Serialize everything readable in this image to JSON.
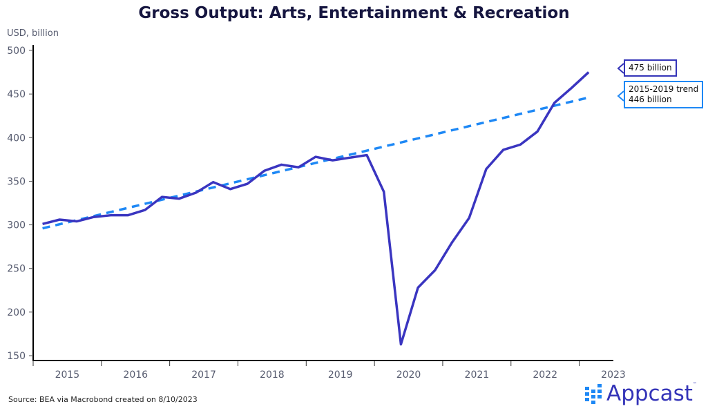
{
  "chart_data": {
    "type": "line",
    "title": "Gross Output: Arts, Entertainment & Recreation",
    "ylabel": "USD, billion",
    "xlabel": "",
    "ylim": [
      150,
      500
    ],
    "yticks": [
      150,
      200,
      250,
      300,
      350,
      400,
      450,
      500
    ],
    "x_tick_labels": [
      "2015",
      "2016",
      "2017",
      "2018",
      "2019",
      "2020",
      "2021",
      "2022",
      "2023"
    ],
    "x": [
      "2015Q1",
      "2015Q2",
      "2015Q3",
      "2015Q4",
      "2016Q1",
      "2016Q2",
      "2016Q3",
      "2016Q4",
      "2017Q1",
      "2017Q2",
      "2017Q3",
      "2017Q4",
      "2018Q1",
      "2018Q2",
      "2018Q3",
      "2018Q4",
      "2019Q1",
      "2019Q2",
      "2019Q3",
      "2019Q4",
      "2020Q1",
      "2020Q2",
      "2020Q3",
      "2020Q4",
      "2021Q1",
      "2021Q2",
      "2021Q3",
      "2021Q4",
      "2022Q1",
      "2022Q2",
      "2022Q3",
      "2022Q4",
      "2023Q1"
    ],
    "series": [
      {
        "name": "Gross output",
        "style": "solid",
        "color": "#3a35c0",
        "values": [
          301,
          306,
          304,
          309,
          311,
          311,
          317,
          332,
          330,
          337,
          349,
          341,
          347,
          362,
          369,
          366,
          378,
          374,
          377,
          380,
          338,
          163,
          228,
          248,
          280,
          308,
          364,
          386,
          392,
          407,
          440,
          457,
          475
        ]
      },
      {
        "name": "2015-2019 trend",
        "style": "dashed",
        "color": "#1e88f5",
        "start": 296,
        "end": 446
      }
    ],
    "annotations": [
      {
        "lines": [
          "475 billion"
        ],
        "color": "#3434b8"
      },
      {
        "lines": [
          "2015-2019 trend",
          "446 billion"
        ],
        "color": "#1e88f5"
      }
    ],
    "grid": false
  },
  "source": "Source: BEA via Macrobond created on 8/10/2023",
  "logo": {
    "text": "Appcast",
    "tm": "™"
  }
}
